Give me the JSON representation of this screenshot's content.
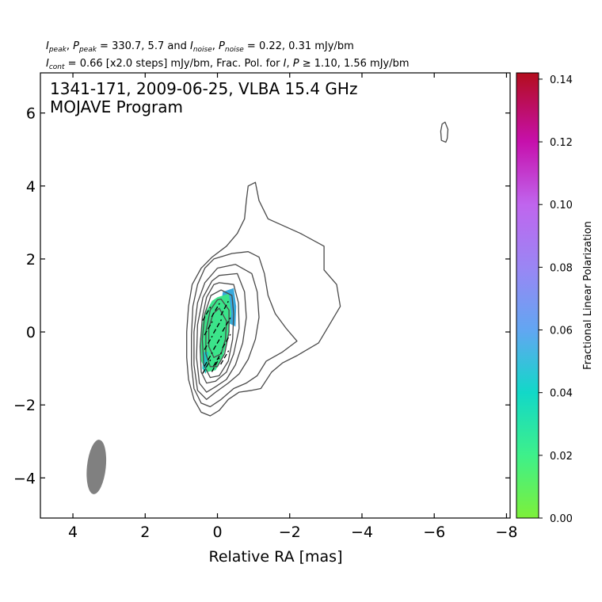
{
  "header": {
    "line1_parts": [
      {
        "t": "I",
        "it": true
      },
      {
        "t": "peak",
        "sub": true,
        "it": true
      },
      {
        "t": ", "
      },
      {
        "t": "P",
        "it": true
      },
      {
        "t": "peak",
        "sub": true,
        "it": true
      },
      {
        "t": " = 330.7, 5.7 and "
      },
      {
        "t": "I",
        "it": true
      },
      {
        "t": "noise",
        "sub": true,
        "it": true
      },
      {
        "t": ", "
      },
      {
        "t": "P",
        "it": true
      },
      {
        "t": "noise",
        "sub": true,
        "it": true
      },
      {
        "t": " = 0.22, 0.31 mJy/bm"
      }
    ],
    "line2_parts": [
      {
        "t": "I",
        "it": true
      },
      {
        "t": "cont",
        "sub": true,
        "it": true
      },
      {
        "t": " = 0.66 [x2.0 steps] mJy/bm, Frac. Pol. for "
      },
      {
        "t": "I",
        "it": true
      },
      {
        "t": ", "
      },
      {
        "t": "P",
        "it": true
      },
      {
        "t": " ≥ 1.10, 1.56 mJy/bm"
      }
    ]
  },
  "chart_data": {
    "type": "contour",
    "title": "1341-171, 2009-06-25, VLBA 15.4 GHz",
    "subtitle": "MOJAVE Program",
    "xlabel": "Relative RA [mas]",
    "ylabel": "",
    "xlim": [
      4.9,
      -8.1
    ],
    "ylim": [
      -5.1,
      7.1
    ],
    "xticks": [
      4,
      2,
      0,
      -2,
      -4,
      -6,
      -8
    ],
    "xtick_labels": [
      "4",
      "2",
      "0",
      "−2",
      "−4",
      "−6",
      "−8"
    ],
    "yticks": [
      -4,
      -2,
      0,
      2,
      4,
      6
    ],
    "ytick_labels": [
      "−4",
      "−2",
      "0",
      "2",
      "4",
      "6"
    ],
    "contour_base_mJy_bm": 0.66,
    "contour_step_factor": 2.0,
    "beam": {
      "x": 3.35,
      "y": -3.7,
      "major_mas": 1.5,
      "minor_mas": 0.52,
      "pa_deg": -6,
      "color": "#808080"
    },
    "contours": [
      [
        [
          -1.05,
          4.1
        ],
        [
          -1.15,
          3.6
        ],
        [
          -1.4,
          3.1
        ],
        [
          -2.3,
          2.7
        ],
        [
          -2.95,
          2.35
        ],
        [
          -2.95,
          1.7
        ],
        [
          -3.3,
          1.3
        ],
        [
          -3.4,
          0.7
        ],
        [
          -3.1,
          0.2
        ],
        [
          -2.8,
          -0.3
        ],
        [
          -2.2,
          -0.65
        ],
        [
          -1.8,
          -0.85
        ],
        [
          -1.5,
          -1.1
        ],
        [
          -1.2,
          -1.55
        ],
        [
          -0.95,
          -1.6
        ],
        [
          -0.6,
          -1.65
        ],
        [
          -0.3,
          -1.85
        ],
        [
          -0.05,
          -2.15
        ],
        [
          0.2,
          -2.3
        ],
        [
          0.45,
          -2.2
        ],
        [
          0.65,
          -1.85
        ],
        [
          0.8,
          -1.3
        ],
        [
          0.85,
          -0.7
        ],
        [
          0.85,
          0.0
        ],
        [
          0.8,
          0.7
        ],
        [
          0.7,
          1.3
        ],
        [
          0.45,
          1.75
        ],
        [
          0.15,
          2.05
        ],
        [
          -0.25,
          2.35
        ],
        [
          -0.55,
          2.7
        ],
        [
          -0.75,
          3.1
        ],
        [
          -0.8,
          3.6
        ],
        [
          -0.85,
          4.0
        ],
        [
          -1.05,
          4.1
        ]
      ],
      [
        [
          0.1,
          2.0
        ],
        [
          -0.4,
          2.15
        ],
        [
          -0.85,
          2.2
        ],
        [
          -1.15,
          2.05
        ],
        [
          -1.3,
          1.6
        ],
        [
          -1.4,
          1.0
        ],
        [
          -1.6,
          0.5
        ],
        [
          -1.9,
          0.1
        ],
        [
          -2.2,
          -0.25
        ],
        [
          -1.8,
          -0.55
        ],
        [
          -1.35,
          -0.8
        ],
        [
          -1.1,
          -1.2
        ],
        [
          -0.8,
          -1.4
        ],
        [
          -0.45,
          -1.55
        ],
        [
          -0.1,
          -1.85
        ],
        [
          0.2,
          -2.05
        ],
        [
          0.45,
          -1.95
        ],
        [
          0.65,
          -1.55
        ],
        [
          0.72,
          -0.9
        ],
        [
          0.72,
          -0.1
        ],
        [
          0.68,
          0.7
        ],
        [
          0.55,
          1.3
        ],
        [
          0.35,
          1.75
        ],
        [
          0.1,
          2.0
        ]
      ],
      [
        [
          0.0,
          1.75
        ],
        [
          -0.5,
          1.85
        ],
        [
          -0.95,
          1.6
        ],
        [
          -1.1,
          1.1
        ],
        [
          -1.15,
          0.4
        ],
        [
          -1.05,
          -0.2
        ],
        [
          -0.85,
          -0.75
        ],
        [
          -0.6,
          -1.15
        ],
        [
          -0.3,
          -1.4
        ],
        [
          0.05,
          -1.65
        ],
        [
          0.3,
          -1.85
        ],
        [
          0.55,
          -1.6
        ],
        [
          0.65,
          -0.9
        ],
        [
          0.65,
          0.0
        ],
        [
          0.55,
          0.8
        ],
        [
          0.35,
          1.35
        ],
        [
          0.0,
          1.75
        ]
      ],
      [
        [
          -0.05,
          1.55
        ],
        [
          -0.55,
          1.6
        ],
        [
          -0.75,
          1.1
        ],
        [
          -0.8,
          0.4
        ],
        [
          -0.7,
          -0.3
        ],
        [
          -0.5,
          -0.9
        ],
        [
          -0.25,
          -1.3
        ],
        [
          0.05,
          -1.5
        ],
        [
          0.3,
          -1.65
        ],
        [
          0.5,
          -1.4
        ],
        [
          0.58,
          -0.7
        ],
        [
          0.55,
          0.2
        ],
        [
          0.4,
          0.95
        ],
        [
          0.15,
          1.4
        ],
        [
          -0.05,
          1.55
        ]
      ],
      [
        [
          -0.05,
          1.35
        ],
        [
          -0.45,
          1.3
        ],
        [
          -0.58,
          0.8
        ],
        [
          -0.6,
          0.1
        ],
        [
          -0.45,
          -0.6
        ],
        [
          -0.25,
          -1.1
        ],
        [
          0.05,
          -1.35
        ],
        [
          0.3,
          -1.4
        ],
        [
          0.45,
          -1.1
        ],
        [
          0.48,
          -0.4
        ],
        [
          0.42,
          0.4
        ],
        [
          0.3,
          0.95
        ],
        [
          0.1,
          1.3
        ],
        [
          -0.05,
          1.35
        ]
      ],
      [
        [
          -0.1,
          1.15
        ],
        [
          -0.4,
          1.0
        ],
        [
          -0.45,
          0.5
        ],
        [
          -0.42,
          -0.2
        ],
        [
          -0.3,
          -0.8
        ],
        [
          -0.05,
          -1.2
        ],
        [
          0.2,
          -1.25
        ],
        [
          0.38,
          -0.9
        ],
        [
          0.42,
          -0.2
        ],
        [
          0.35,
          0.5
        ],
        [
          0.18,
          1.0
        ],
        [
          -0.1,
          1.15
        ]
      ],
      [
        [
          -0.1,
          0.9
        ],
        [
          -0.32,
          0.6
        ],
        [
          -0.32,
          0.0
        ],
        [
          -0.2,
          -0.6
        ],
        [
          0.0,
          -0.95
        ],
        [
          0.2,
          -0.95
        ],
        [
          0.32,
          -0.6
        ],
        [
          0.32,
          0.0
        ],
        [
          0.2,
          0.6
        ],
        [
          0.0,
          0.88
        ],
        [
          -0.1,
          0.9
        ]
      ],
      [
        [
          -0.05,
          0.65
        ],
        [
          -0.25,
          0.3
        ],
        [
          -0.22,
          -0.2
        ],
        [
          -0.1,
          -0.6
        ],
        [
          0.1,
          -0.7
        ],
        [
          0.24,
          -0.4
        ],
        [
          0.24,
          0.1
        ],
        [
          0.12,
          0.5
        ],
        [
          -0.05,
          0.65
        ]
      ],
      [
        [
          -6.3,
          5.75
        ],
        [
          -6.38,
          5.55
        ],
        [
          -6.36,
          5.3
        ],
        [
          -6.32,
          5.2
        ],
        [
          -6.2,
          5.25
        ],
        [
          -6.18,
          5.5
        ],
        [
          -6.22,
          5.7
        ],
        [
          -6.3,
          5.75
        ]
      ]
    ],
    "fractional_polarization_regions": [
      {
        "value": 0.045,
        "color": "#37a8dc",
        "points": [
          [
            -0.15,
            1.1
          ],
          [
            -0.45,
            1.2
          ],
          [
            -0.52,
            0.7
          ],
          [
            -0.5,
            0.15
          ],
          [
            -0.2,
            0.3
          ],
          [
            -0.1,
            0.8
          ],
          [
            -0.15,
            1.1
          ]
        ]
      },
      {
        "value": 0.025,
        "color": "#3be48a",
        "points": [
          [
            0.0,
            0.95
          ],
          [
            -0.32,
            1.05
          ],
          [
            -0.38,
            0.5
          ],
          [
            -0.3,
            -0.1
          ],
          [
            -0.15,
            -0.7
          ],
          [
            0.05,
            -1.05
          ],
          [
            0.3,
            -1.1
          ],
          [
            0.45,
            -0.8
          ],
          [
            0.48,
            -0.2
          ],
          [
            0.38,
            0.45
          ],
          [
            0.15,
            0.85
          ],
          [
            0.0,
            0.95
          ]
        ]
      },
      {
        "value": 0.04,
        "color": "#1ec8c0",
        "points": [
          [
            0.25,
            -0.55
          ],
          [
            0.38,
            -0.55
          ],
          [
            0.42,
            -1.0
          ],
          [
            0.32,
            -1.15
          ],
          [
            0.25,
            -0.55
          ]
        ]
      }
    ],
    "evpa_vectors": [
      [
        0.3,
        0.5,
        30
      ],
      [
        0.05,
        0.6,
        30
      ],
      [
        -0.2,
        0.65,
        28
      ],
      [
        0.25,
        0.1,
        30
      ],
      [
        0.0,
        0.15,
        30
      ],
      [
        -0.25,
        0.2,
        30
      ],
      [
        0.25,
        -0.3,
        30
      ],
      [
        0.0,
        -0.3,
        30
      ],
      [
        -0.25,
        -0.25,
        30
      ],
      [
        0.25,
        -0.75,
        30
      ],
      [
        0.0,
        -0.75,
        30
      ],
      [
        -0.2,
        -0.7,
        30
      ],
      [
        0.3,
        -0.95,
        30
      ],
      [
        0.05,
        -0.9,
        28
      ]
    ],
    "colorbar": {
      "label": "Fractional Linear Polarization",
      "min": 0.0,
      "max": 0.142,
      "ticks": [
        0.0,
        0.02,
        0.04,
        0.06,
        0.08,
        0.1,
        0.12,
        0.14
      ],
      "tick_labels": [
        "0.00",
        "0.02",
        "0.04",
        "0.06",
        "0.08",
        "0.10",
        "0.12",
        "0.14"
      ],
      "stops": [
        [
          0.0,
          "#7df03a"
        ],
        [
          0.02,
          "#3ef08a"
        ],
        [
          0.04,
          "#12d8c8"
        ],
        [
          0.06,
          "#62a6f2"
        ],
        [
          0.08,
          "#9a86f4"
        ],
        [
          0.1,
          "#c065ee"
        ],
        [
          0.12,
          "#c610ac"
        ],
        [
          0.142,
          "#b30d1d"
        ]
      ]
    }
  }
}
